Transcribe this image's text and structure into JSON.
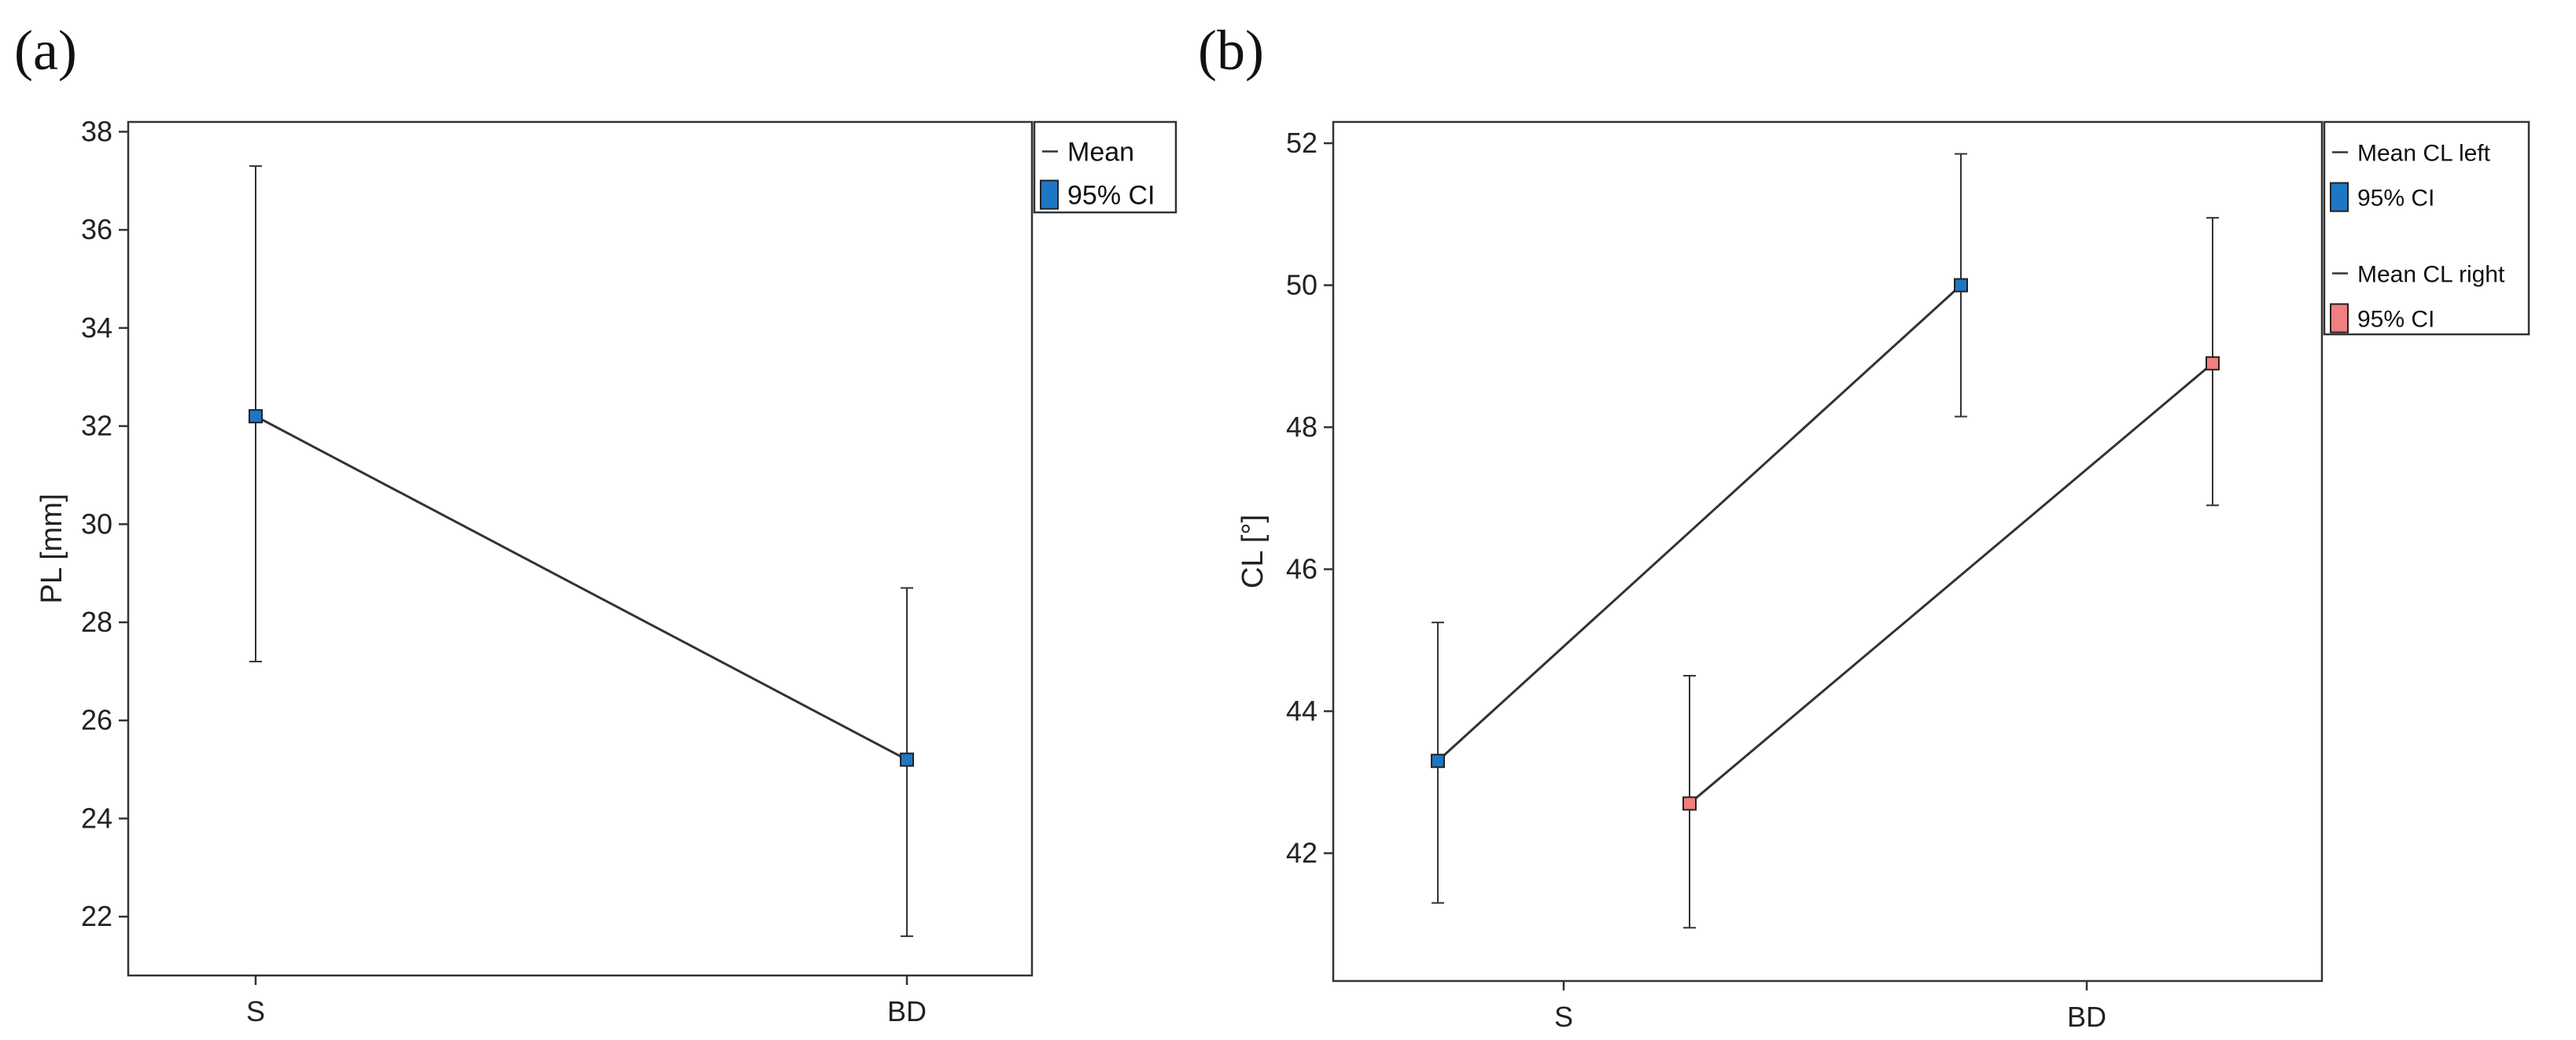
{
  "chart_data": [
    {
      "panel_label": "(a)",
      "type": "line",
      "title": "",
      "xlabel": "",
      "ylabel": "PL [mm]",
      "categories": [
        "S",
        "BD"
      ],
      "ylim": [
        20.8,
        38.2
      ],
      "yticks": [
        22,
        24,
        26,
        28,
        30,
        32,
        34,
        36,
        38
      ],
      "grid": false,
      "legend_position": "top-right-outside",
      "legend": [
        {
          "label": "Mean",
          "kind": "line"
        },
        {
          "label": "95% CI",
          "kind": "box",
          "color": "#1f77c4"
        }
      ],
      "series": [
        {
          "x": [
            "S",
            "BD"
          ],
          "mean": [
            32.2,
            25.2
          ],
          "ci_low": [
            27.2,
            21.6
          ],
          "ci_high": [
            37.3,
            28.7
          ],
          "color": "#1f77c4"
        }
      ]
    },
    {
      "panel_label": "(b)",
      "type": "line",
      "title": "",
      "xlabel": "",
      "ylabel": "CL [°]",
      "categories": [
        "S",
        "BD"
      ],
      "ylim": [
        40.2,
        52.3
      ],
      "yticks": [
        42,
        44,
        46,
        48,
        50,
        52
      ],
      "grid": false,
      "legend_position": "top-right-outside",
      "legend": [
        {
          "label": "Mean CL left",
          "kind": "line"
        },
        {
          "label": "95% CI",
          "kind": "box",
          "color": "#1f77c4"
        },
        {
          "label": "Mean CL right",
          "kind": "line"
        },
        {
          "label": "95% CI",
          "kind": "box",
          "color": "#f07f7f"
        }
      ],
      "series": [
        {
          "x": [
            "S",
            "BD"
          ],
          "mean": [
            43.3,
            50.0
          ],
          "ci_low": [
            41.3,
            48.15
          ],
          "ci_high": [
            45.25,
            51.85
          ],
          "color": "#1f77c4"
        },
        {
          "x": [
            "S",
            "BD"
          ],
          "mean": [
            42.7,
            48.9
          ],
          "ci_low": [
            40.95,
            46.9
          ],
          "ci_high": [
            44.5,
            50.95
          ],
          "color": "#f07f7f"
        }
      ]
    }
  ]
}
